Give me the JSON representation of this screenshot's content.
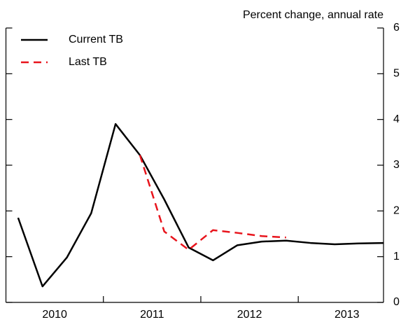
{
  "chart_data": {
    "type": "line",
    "title": "Percent change, annual rate",
    "x": [
      2010.125,
      2010.375,
      2010.625,
      2010.875,
      2011.125,
      2011.375,
      2011.625,
      2011.875,
      2012.125,
      2012.375,
      2012.625,
      2012.875,
      2013.125,
      2013.375,
      2013.625,
      2013.875
    ],
    "series": [
      {
        "name": "Current TB",
        "color": "#000000",
        "dash": false,
        "values": [
          1.85,
          0.35,
          0.98,
          1.95,
          3.9,
          3.22,
          2.25,
          1.2,
          0.92,
          1.25,
          1.33,
          1.35,
          1.3,
          1.27,
          1.29,
          1.3
        ]
      },
      {
        "name": "Last TB",
        "color": "#e8141c",
        "dash": true,
        "values": [
          null,
          null,
          null,
          null,
          null,
          3.22,
          1.55,
          1.15,
          1.58,
          1.52,
          1.45,
          1.42,
          null,
          null,
          null,
          null
        ]
      }
    ],
    "xlim": [
      2010.0,
      2013.875
    ],
    "xticks": [
      {
        "value": 2010.5,
        "label": "2010"
      },
      {
        "value": 2011.5,
        "label": "2011"
      },
      {
        "value": 2012.5,
        "label": "2012"
      },
      {
        "value": 2013.5,
        "label": "2013"
      }
    ],
    "ylim": [
      0,
      6
    ],
    "yticks": [
      0,
      1,
      2,
      3,
      4,
      5,
      6
    ],
    "legend": "upper left"
  }
}
